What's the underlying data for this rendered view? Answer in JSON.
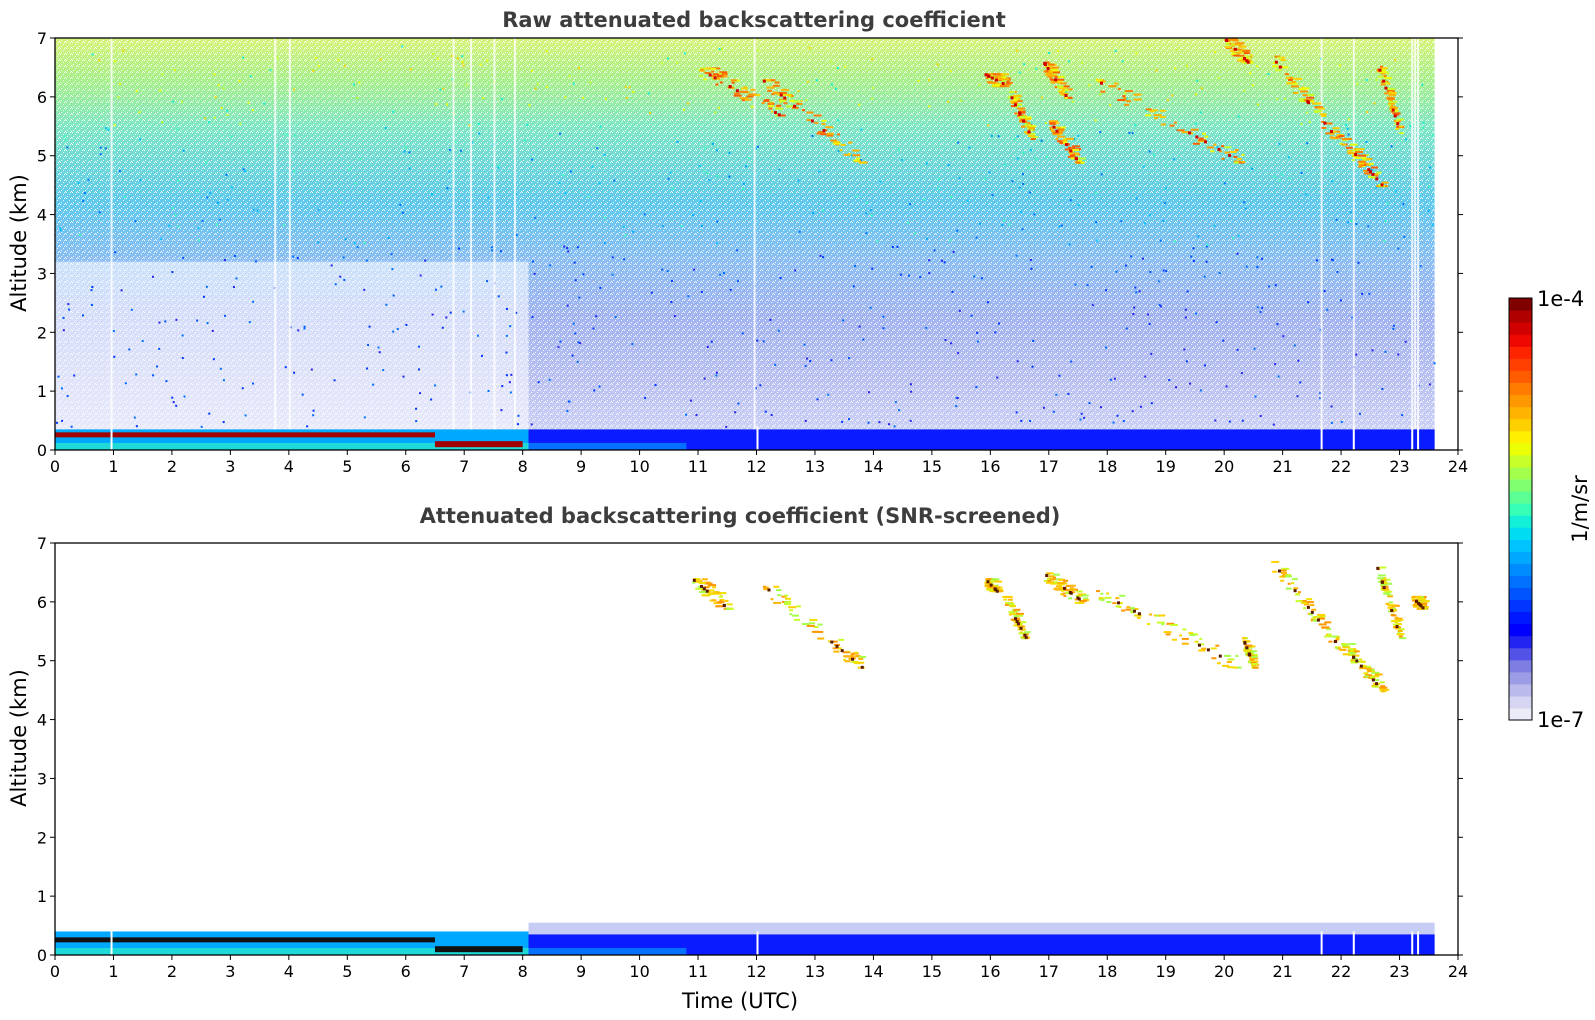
{
  "chart_data": [
    {
      "type": "heatmap",
      "title": "Raw attenuated backscattering coefficient",
      "xlabel": "",
      "ylabel": "Altitude (km)",
      "xlim": [
        0,
        24
      ],
      "ylim": [
        0,
        7
      ],
      "xticks": [
        "0",
        "1",
        "2",
        "3",
        "4",
        "5",
        "6",
        "7",
        "8",
        "9",
        "10",
        "11",
        "12",
        "13",
        "14",
        "15",
        "16",
        "17",
        "18",
        "19",
        "20",
        "21",
        "22",
        "23",
        "24"
      ],
      "yticks": [
        "0",
        "1",
        "2",
        "3",
        "4",
        "5",
        "6",
        "7"
      ],
      "data_end_time": 23.6,
      "cloud_patches": [
        {
          "t0": 11.0,
          "t1": 12.4,
          "z0": 5.7,
          "z1": 6.5
        },
        {
          "t0": 12.1,
          "t1": 13.8,
          "z0": 4.9,
          "z1": 6.3
        },
        {
          "t0": 15.9,
          "t1": 16.3,
          "z0": 6.2,
          "z1": 6.4
        },
        {
          "t0": 16.3,
          "t1": 16.7,
          "z0": 5.3,
          "z1": 6.1
        },
        {
          "t0": 16.9,
          "t1": 17.3,
          "z0": 6.0,
          "z1": 6.6
        },
        {
          "t0": 17.0,
          "t1": 17.5,
          "z0": 4.9,
          "z1": 5.6
        },
        {
          "t0": 17.8,
          "t1": 20.3,
          "z0": 4.9,
          "z1": 6.3
        },
        {
          "t0": 20.0,
          "t1": 20.4,
          "z0": 6.6,
          "z1": 7.0
        },
        {
          "t0": 20.8,
          "t1": 22.0,
          "z0": 5.2,
          "z1": 6.7
        },
        {
          "t0": 22.0,
          "t1": 22.7,
          "z0": 4.5,
          "z1": 5.3
        },
        {
          "t0": 22.6,
          "t1": 23.0,
          "z0": 5.4,
          "z1": 6.6
        }
      ]
    },
    {
      "type": "heatmap",
      "title": "Attenuated backscattering coefficient (SNR-screened)",
      "xlabel": "Time (UTC)",
      "ylabel": "Altitude (km)",
      "xlim": [
        0,
        24
      ],
      "ylim": [
        0,
        7
      ],
      "xticks": [
        "0",
        "1",
        "2",
        "3",
        "4",
        "5",
        "6",
        "7",
        "8",
        "9",
        "10",
        "11",
        "12",
        "13",
        "14",
        "15",
        "16",
        "17",
        "18",
        "19",
        "20",
        "21",
        "22",
        "23",
        "24"
      ],
      "yticks": [
        "0",
        "1",
        "2",
        "3",
        "4",
        "5",
        "6",
        "7"
      ],
      "data_end_time": 23.6,
      "cloud_patches": [
        {
          "t0": 10.9,
          "t1": 11.5,
          "z0": 5.9,
          "z1": 6.4
        },
        {
          "t0": 12.1,
          "t1": 13.8,
          "z0": 4.9,
          "z1": 6.3
        },
        {
          "t0": 15.9,
          "t1": 16.1,
          "z0": 6.2,
          "z1": 6.4
        },
        {
          "t0": 16.2,
          "t1": 16.6,
          "z0": 5.4,
          "z1": 6.1
        },
        {
          "t0": 16.9,
          "t1": 17.6,
          "z0": 6.0,
          "z1": 6.5
        },
        {
          "t0": 17.8,
          "t1": 20.3,
          "z0": 4.9,
          "z1": 6.2
        },
        {
          "t0": 20.3,
          "t1": 20.5,
          "z0": 4.9,
          "z1": 5.4
        },
        {
          "t0": 20.8,
          "t1": 22.0,
          "z0": 5.2,
          "z1": 6.7
        },
        {
          "t0": 22.0,
          "t1": 22.7,
          "z0": 4.5,
          "z1": 5.3
        },
        {
          "t0": 22.6,
          "t1": 23.0,
          "z0": 5.4,
          "z1": 6.6
        },
        {
          "t0": 23.2,
          "t1": 23.4,
          "z0": 5.9,
          "z1": 6.1
        }
      ]
    }
  ],
  "colorbar": {
    "max_label": "1e-4",
    "min_label": "1e-7",
    "unit_label": "1/m/sr",
    "colors": [
      "#ecebf8",
      "#d6d6f2",
      "#babaec",
      "#9c9ce6",
      "#7d7de2",
      "#5252e6",
      "#2424f0",
      "#0000ff",
      "#0018ff",
      "#0034ff",
      "#0054ff",
      "#0070ff",
      "#008cff",
      "#00a8ff",
      "#00c4ff",
      "#00dcf2",
      "#14f0d8",
      "#38ffb8",
      "#5cff94",
      "#80ff70",
      "#a4ff4c",
      "#c8ff28",
      "#ecff04",
      "#fff000",
      "#ffd000",
      "#ffb400",
      "#ff9800",
      "#ff7c00",
      "#ff5c00",
      "#ff4000",
      "#ff2400",
      "#ee0800",
      "#d00000",
      "#b00000",
      "#800000"
    ]
  }
}
